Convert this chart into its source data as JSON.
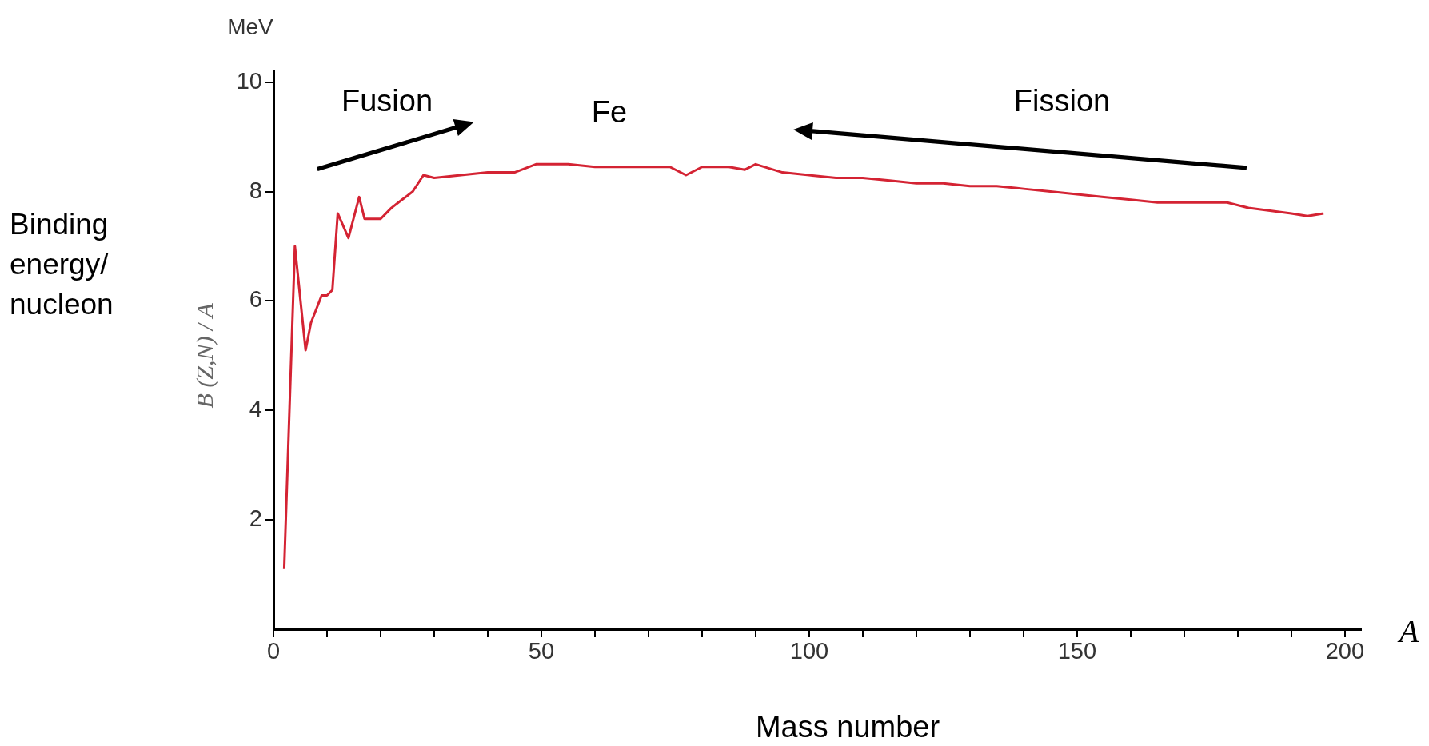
{
  "chart_data": {
    "type": "line",
    "ylabel": "B (Z,N) / A",
    "xlabel": "Mass number",
    "annotations": [
      "MeV",
      "A",
      "Binding\nenergy/\nnucleon",
      "Fusion",
      "Fe",
      "Fission"
    ],
    "series": [
      {
        "color": "#d42333",
        "x": [
          2,
          4,
          6,
          7,
          9,
          10,
          11,
          12,
          14,
          16,
          17,
          20,
          22,
          24,
          26,
          28,
          30,
          35,
          40,
          45,
          49,
          55,
          60,
          65,
          70,
          74,
          77,
          80,
          85,
          88,
          90,
          95,
          100,
          105,
          110,
          115,
          120,
          125,
          130,
          135,
          140,
          145,
          150,
          155,
          160,
          165,
          170,
          175,
          178,
          182,
          186,
          190,
          193,
          196
        ],
        "values": [
          1.1,
          7.0,
          5.1,
          5.6,
          6.1,
          6.1,
          6.2,
          7.6,
          7.15,
          7.9,
          7.5,
          7.5,
          7.7,
          7.85,
          8.0,
          8.3,
          8.25,
          8.3,
          8.35,
          8.35,
          8.5,
          8.5,
          8.45,
          8.45,
          8.45,
          8.45,
          8.3,
          8.45,
          8.45,
          8.4,
          8.5,
          8.35,
          8.3,
          8.25,
          8.25,
          8.2,
          8.15,
          8.15,
          8.1,
          8.1,
          8.05,
          8.0,
          7.95,
          7.9,
          7.85,
          7.8,
          7.8,
          7.8,
          7.8,
          7.7,
          7.65,
          7.6,
          7.55,
          7.6
        ]
      }
    ],
    "xlim": [
      0,
      203
    ],
    "ylim": [
      0,
      10.2
    ],
    "xticks": [
      0,
      {
        "value": 10,
        "label": null
      },
      {
        "value": 20,
        "label": null
      },
      {
        "value": 30,
        "label": null
      },
      {
        "value": 40,
        "label": null
      },
      50,
      {
        "value": 60,
        "label": null
      },
      {
        "value": 70,
        "label": null
      },
      {
        "value": 80,
        "label": null
      },
      {
        "value": 90,
        "label": null
      },
      100,
      {
        "value": 110,
        "label": null
      },
      {
        "value": 120,
        "label": null
      },
      {
        "value": 130,
        "label": null
      },
      {
        "value": 140,
        "label": null
      },
      150,
      {
        "value": 160,
        "label": null
      },
      {
        "value": 170,
        "label": null
      },
      {
        "value": 180,
        "label": null
      },
      {
        "value": 190,
        "label": null
      },
      200
    ],
    "yticks": [
      2,
      4,
      6,
      8,
      10
    ],
    "grid": false,
    "legend": false,
    "marker": "none",
    "line_style": "solid"
  }
}
